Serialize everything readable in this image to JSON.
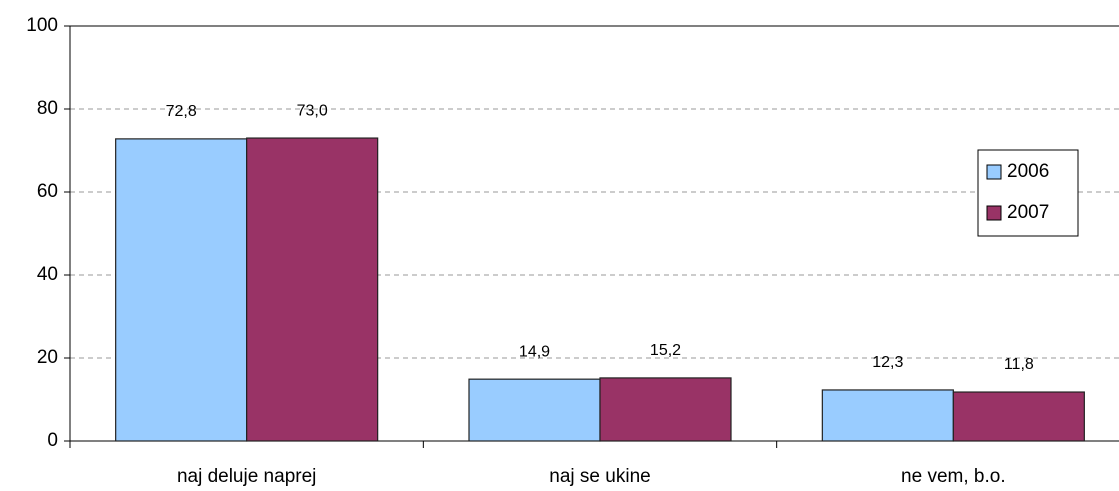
{
  "chart_data": {
    "type": "bar",
    "categories": [
      "naj deluje naprej",
      "naj se ukine",
      "ne vem, b.o."
    ],
    "series": [
      {
        "name": "2006",
        "color": "#99ccff",
        "values": [
          72.8,
          14.9,
          12.3
        ],
        "value_labels": [
          "72,8",
          "14,9",
          "12,3"
        ]
      },
      {
        "name": "2007",
        "color": "#993366",
        "values": [
          73.0,
          15.2,
          11.8
        ],
        "value_labels": [
          "73,0",
          "15,2",
          "11,8"
        ]
      }
    ],
    "ylim": [
      0,
      100
    ],
    "yticks": [
      0,
      20,
      40,
      60,
      80,
      100
    ],
    "grid": true,
    "legend": "upper right"
  }
}
